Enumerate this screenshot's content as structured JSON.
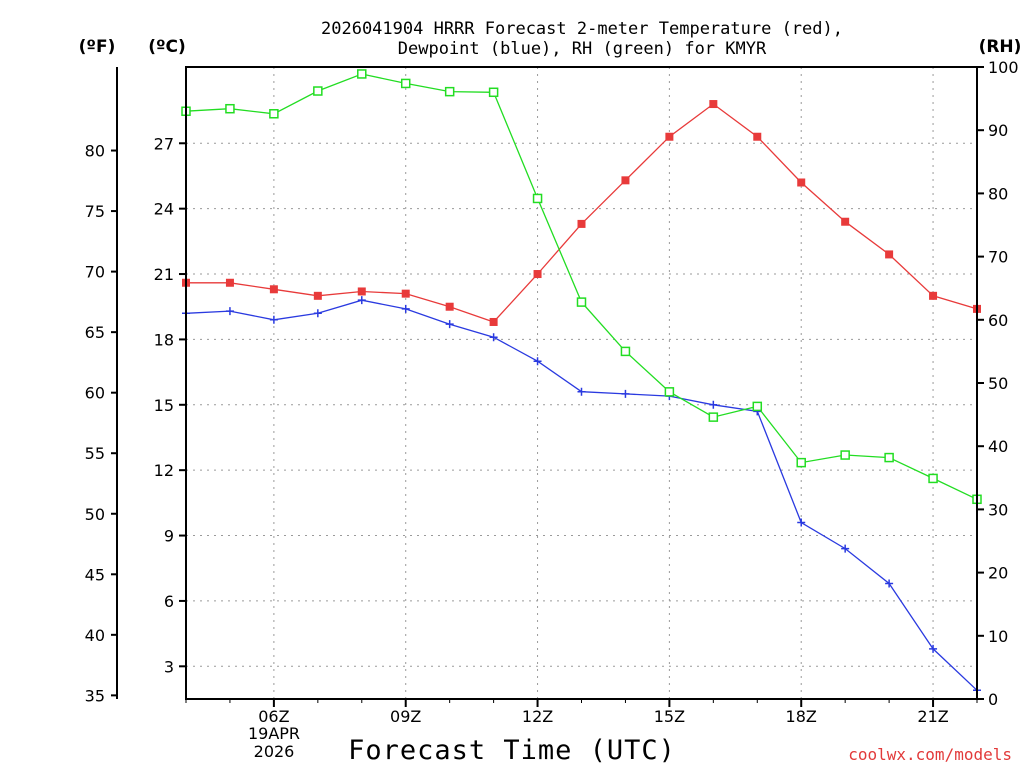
{
  "chart_data": {
    "type": "line",
    "title": {
      "line1": "2026041904 HRRR Forecast 2-meter Temperature (red),",
      "line2": "Dewpoint (blue), RH (green) for KMYR"
    },
    "units": {
      "f": "(ºF)",
      "c": "(ºC)",
      "rh": "(RH)"
    },
    "xlabel": "Forecast Time (UTC)",
    "date_label": {
      "day": "19APR",
      "year": "2026"
    },
    "credit": "coolwx.com/models",
    "x_hours": [
      4,
      5,
      6,
      7,
      8,
      9,
      10,
      11,
      12,
      13,
      14,
      15,
      16,
      17,
      18,
      19,
      20,
      21,
      22
    ],
    "xlim": [
      4,
      22
    ],
    "x_ticks": [
      {
        "hour": 6,
        "label": "06Z"
      },
      {
        "hour": 9,
        "label": "09Z"
      },
      {
        "hour": 12,
        "label": "12Z"
      },
      {
        "hour": 15,
        "label": "15Z"
      },
      {
        "hour": 18,
        "label": "18Z"
      },
      {
        "hour": 21,
        "label": "21Z"
      }
    ],
    "c_axis": {
      "lim": [
        1.5,
        30.5
      ],
      "ticks": [
        3,
        6,
        9,
        12,
        15,
        18,
        21,
        24,
        27
      ]
    },
    "f_axis": {
      "ticks": [
        35,
        40,
        45,
        50,
        55,
        60,
        65,
        70,
        75,
        80
      ]
    },
    "rh_axis": {
      "lim": [
        0,
        100
      ],
      "ticks": [
        0,
        10,
        20,
        30,
        40,
        50,
        60,
        70,
        80,
        90,
        100
      ]
    },
    "series": [
      {
        "name": "Temperature",
        "axis": "c",
        "color": "#e83a3a",
        "marker": "filled-square",
        "values": [
          20.6,
          20.6,
          20.3,
          20.0,
          20.2,
          20.1,
          19.5,
          18.8,
          21.0,
          23.3,
          25.3,
          27.3,
          28.8,
          27.3,
          25.2,
          23.4,
          21.9,
          20.0,
          19.4
        ]
      },
      {
        "name": "Dewpoint",
        "axis": "c",
        "color": "#2a3ae0",
        "marker": "plus",
        "values": [
          19.2,
          19.3,
          18.9,
          19.2,
          19.8,
          19.4,
          18.7,
          18.1,
          17.0,
          15.6,
          15.5,
          15.4,
          15.0,
          14.7,
          9.6,
          8.4,
          6.8,
          3.8,
          1.9
        ]
      },
      {
        "name": "RH",
        "axis": "rh",
        "color": "#22dd22",
        "marker": "open-square",
        "values": [
          93,
          93.4,
          92.6,
          96.2,
          98.9,
          97.4,
          96.1,
          96,
          79.2,
          62.8,
          55,
          48.6,
          44.6,
          46.3,
          37.4,
          38.6,
          38.2,
          34.9,
          31.6
        ]
      }
    ]
  }
}
